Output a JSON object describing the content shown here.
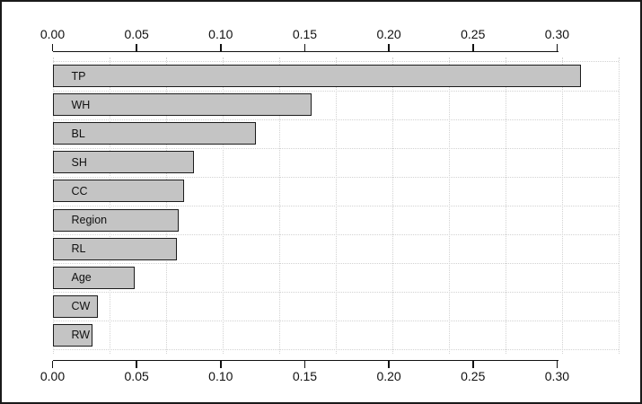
{
  "chart_data": {
    "type": "bar",
    "orientation": "horizontal",
    "title": "",
    "xlabel": "",
    "ylabel": "",
    "categories": [
      "TP",
      "WH",
      "BL",
      "SH",
      "CC",
      "Region",
      "RL",
      "Age",
      "CW",
      "RW"
    ],
    "values": [
      0.314,
      0.154,
      0.121,
      0.084,
      0.078,
      0.075,
      0.074,
      0.049,
      0.027,
      0.024
    ],
    "xlim": [
      0.0,
      0.333
    ],
    "x_ticks": [
      0.0,
      0.05,
      0.1,
      0.15,
      0.2,
      0.25,
      0.3
    ],
    "x_tick_labels": [
      "0.00",
      "0.05",
      "0.10",
      "0.15",
      "0.20",
      "0.25",
      "0.30"
    ],
    "axis_positions": [
      "top",
      "bottom"
    ],
    "grid": "dotted vertical lines every 0.0333 units and dotted horizontal lines between bar rows",
    "legend": "none",
    "bar_label_position": "inside-left",
    "colors": {
      "bar_fill": "#c4c4c4",
      "bar_border": "#1c1c1c",
      "grid": "#d2d2d2",
      "axis": "#111111",
      "text": "#111111",
      "background": "#ffffff",
      "frame": "#1a1a1a"
    }
  }
}
